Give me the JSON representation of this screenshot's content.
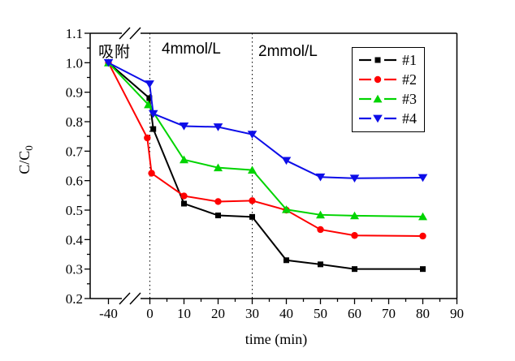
{
  "chart_data": {
    "type": "line",
    "title": "",
    "xlabel": "time (min)",
    "ylabel": {
      "main": "C/C",
      "sub": "0"
    },
    "annotations": [
      "吸附",
      "4mmol/L",
      "2mmol/L"
    ],
    "x_axis": {
      "label": "time (min)",
      "ticks": [
        -40,
        0,
        10,
        20,
        30,
        40,
        50,
        60,
        70,
        80,
        90
      ],
      "minor_tick_step": 5,
      "range": [
        -40,
        90
      ],
      "axis_break_between": [
        -40,
        0
      ]
    },
    "y_axis": {
      "min": 0.2,
      "max": 1.1,
      "ticks": [
        "0.2",
        "0.3",
        "0.4",
        "0.5",
        "0.6",
        "0.7",
        "0.8",
        "0.9",
        "1.0",
        "1.1"
      ],
      "minor_tick_step": 0.05
    },
    "guide_lines_x": [
      0,
      30
    ],
    "grid": false,
    "legend": {
      "position": "top-right",
      "entries": [
        "#1",
        "#2",
        "#3",
        "#4"
      ]
    },
    "series": [
      {
        "name": "#1",
        "color": "#000000",
        "marker": "square",
        "points": [
          [
            -40,
            1.0
          ],
          [
            -0.5,
            0.88
          ],
          [
            1,
            0.775
          ],
          [
            10,
            0.522
          ],
          [
            20,
            0.482
          ],
          [
            30,
            0.477
          ],
          [
            40,
            0.33
          ],
          [
            50,
            0.316
          ],
          [
            60,
            0.3
          ],
          [
            80,
            0.3
          ]
        ]
      },
      {
        "name": "#2",
        "color": "#FE0000",
        "marker": "circle",
        "points": [
          [
            -40,
            1.0
          ],
          [
            -2.5,
            0.745
          ],
          [
            0.5,
            0.625
          ],
          [
            10,
            0.548
          ],
          [
            20,
            0.529
          ],
          [
            30,
            0.532
          ],
          [
            40,
            0.5
          ],
          [
            50,
            0.434
          ],
          [
            60,
            0.414
          ],
          [
            80,
            0.412
          ]
        ]
      },
      {
        "name": "#3",
        "color": "#00D400",
        "marker": "triangle-up",
        "points": [
          [
            -40,
            1.0
          ],
          [
            -1.5,
            0.858
          ],
          [
            10,
            0.671
          ],
          [
            20,
            0.644
          ],
          [
            30,
            0.636
          ],
          [
            40,
            0.502
          ],
          [
            50,
            0.484
          ],
          [
            60,
            0.481
          ],
          [
            80,
            0.478
          ]
        ]
      },
      {
        "name": "#4",
        "color": "#0D0DE8",
        "marker": "triangle-down",
        "points": [
          [
            -40,
            1.0
          ],
          [
            -0.3,
            0.928
          ],
          [
            1,
            0.827
          ],
          [
            10,
            0.785
          ],
          [
            20,
            0.782
          ],
          [
            30,
            0.757
          ],
          [
            40,
            0.668
          ],
          [
            50,
            0.612
          ],
          [
            60,
            0.608
          ],
          [
            80,
            0.61
          ]
        ]
      }
    ]
  }
}
